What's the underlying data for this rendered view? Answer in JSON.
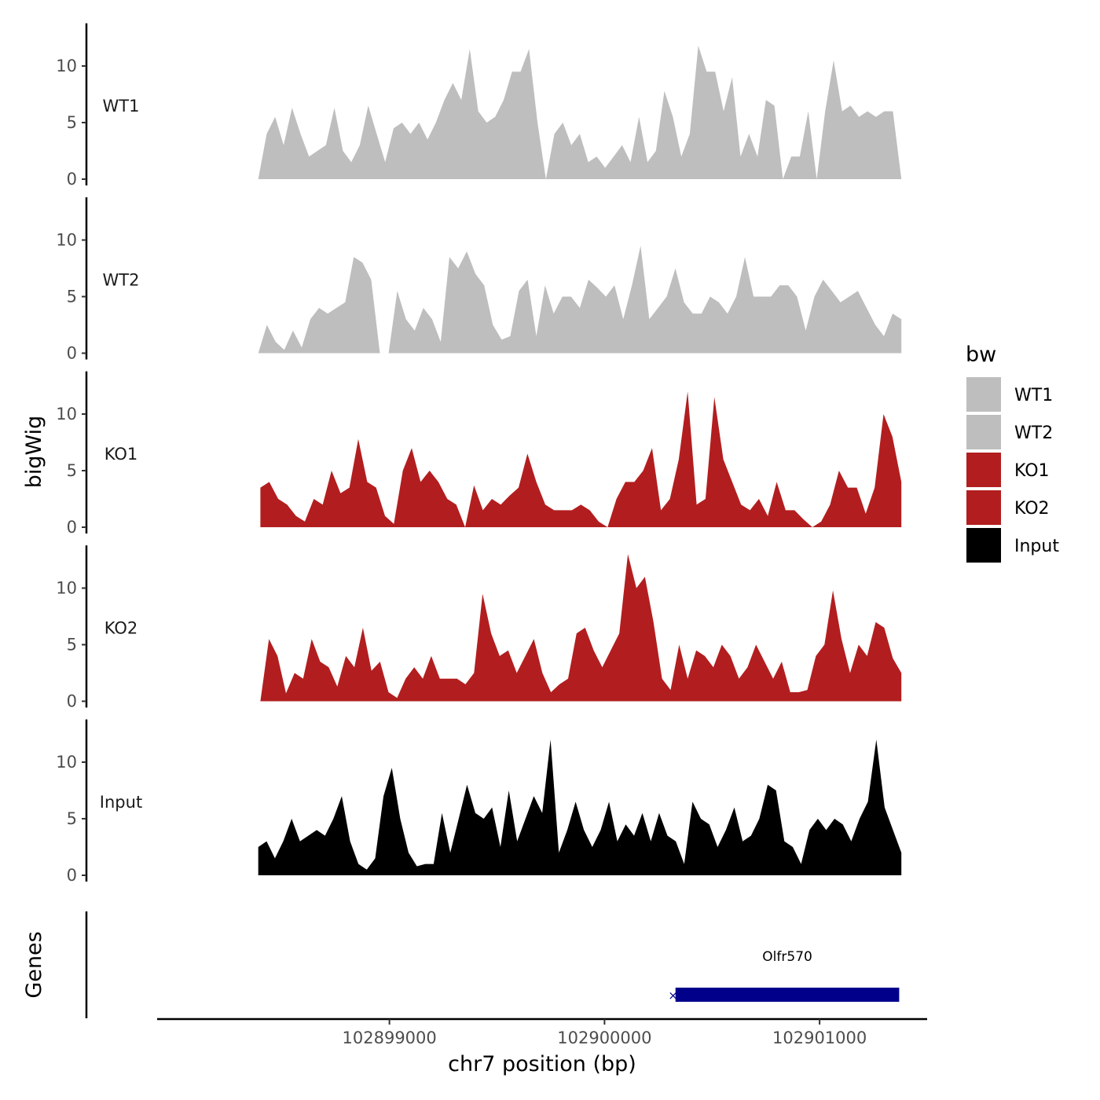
{
  "chart_data": {
    "type": "area",
    "chromosome": "chr7",
    "xlabel": "chr7 position (bp)",
    "ylabel": "bigWig",
    "genes_label": "Genes",
    "x_range": [
      102897920,
      102901500
    ],
    "x_ticks": [
      102899000,
      102900000,
      102901000
    ],
    "x_tick_labels": [
      "102899000",
      "102900000",
      "102901000"
    ],
    "y_range": [
      0,
      13.5
    ],
    "y_ticks": [
      0,
      5,
      10
    ],
    "y_tick_labels": [
      "0",
      "5",
      "10"
    ],
    "legend": {
      "title": "bw",
      "entries": [
        {
          "label": "WT1",
          "color": "#bebebe"
        },
        {
          "label": "WT2",
          "color": "#bebebe"
        },
        {
          "label": "KO1",
          "color": "#b21e1f"
        },
        {
          "label": "KO2",
          "color": "#b21e1f"
        },
        {
          "label": "Input",
          "color": "#000000"
        }
      ]
    },
    "series": [
      {
        "name": "WT1",
        "color": "#bebebe",
        "x_start": 102898390,
        "x_end": 102901380,
        "values": [
          0,
          4,
          5.5,
          3,
          6.3,
          4,
          2,
          2.5,
          3,
          6.3,
          2.5,
          1.5,
          3,
          6.5,
          4,
          1.5,
          4.5,
          5,
          4,
          5,
          3.5,
          5,
          7,
          8.5,
          7,
          11.5,
          6,
          5,
          5.5,
          7,
          9.5,
          9.5,
          11.5,
          5,
          0,
          4,
          5,
          3,
          4,
          1.5,
          2,
          1,
          2,
          3,
          1.5,
          5.5,
          1.5,
          2.5,
          7.8,
          5.5,
          2,
          4,
          11.8,
          9.5,
          9.5,
          6,
          9,
          2,
          4,
          2,
          7,
          6.5,
          0,
          2,
          2,
          6,
          0,
          6,
          10.5,
          6,
          6.5,
          5.5,
          6,
          5.5,
          6,
          6,
          0
        ]
      },
      {
        "name": "WT2",
        "color": "#bebebe",
        "x_start": 102898390,
        "x_end": 102901380,
        "values": [
          0,
          2.5,
          1,
          0.3,
          2,
          0.5,
          3,
          4,
          3.5,
          4,
          4.5,
          8.5,
          8,
          6.5,
          0,
          0,
          5.5,
          3,
          2,
          4,
          3,
          1,
          8.5,
          7.5,
          9,
          7,
          6,
          2.5,
          1.2,
          1.5,
          5.5,
          6.5,
          1.5,
          6,
          3.5,
          5,
          5,
          4,
          6.5,
          5.8,
          5,
          6,
          3,
          6,
          9.5,
          3,
          4,
          5,
          7.5,
          4.5,
          3.5,
          3.5,
          5,
          4.5,
          3.5,
          5,
          8.5,
          5,
          5,
          5,
          6,
          6,
          5,
          2,
          5,
          6.5,
          5.5,
          4.5,
          5,
          5.5,
          4,
          2.5,
          1.5,
          3.5,
          3
        ]
      },
      {
        "name": "KO1",
        "color": "#b21e1f",
        "x_start": 102898400,
        "x_end": 102901380,
        "values": [
          3.5,
          4,
          2.5,
          2,
          1,
          0.5,
          2.5,
          2,
          5,
          3,
          3.5,
          7.8,
          4,
          3.5,
          1,
          0.3,
          5,
          7,
          4,
          5,
          4,
          2.5,
          2,
          0,
          3.7,
          1.5,
          2.5,
          2,
          2.8,
          3.5,
          6.5,
          4,
          2,
          1.5,
          1.5,
          1.5,
          2,
          1.5,
          0.5,
          0,
          2.5,
          4,
          4,
          5,
          7,
          1.5,
          2.5,
          6,
          12,
          2,
          2.5,
          11.5,
          6,
          4,
          2,
          1.5,
          2.5,
          1,
          4,
          1.5,
          1.5,
          0.7,
          0,
          0.5,
          2,
          5,
          3.5,
          3.5,
          1.2,
          3.5,
          10,
          8,
          4
        ]
      },
      {
        "name": "KO2",
        "color": "#b21e1f",
        "x_start": 102898400,
        "x_end": 102901380,
        "values": [
          0,
          5.5,
          4,
          0.7,
          2.5,
          2,
          5.5,
          3.5,
          3,
          1.3,
          4,
          3,
          6.5,
          2.7,
          3.5,
          0.8,
          0.3,
          2,
          3,
          2,
          4,
          2,
          2,
          2,
          1.5,
          2.5,
          9.5,
          6,
          4,
          4.5,
          2.5,
          4,
          5.5,
          2.5,
          0.8,
          1.5,
          2,
          6,
          6.5,
          4.5,
          3,
          4.5,
          6,
          13,
          10,
          11,
          7,
          2,
          1,
          5,
          2,
          4.5,
          4,
          3,
          5,
          4,
          2,
          3,
          5,
          3.5,
          2,
          3.5,
          0.8,
          0.8,
          1,
          4,
          5,
          9.8,
          5.5,
          2.5,
          5,
          4,
          7,
          6.5,
          3.8,
          2.5
        ]
      },
      {
        "name": "Input",
        "color": "#000000",
        "x_start": 102898390,
        "x_end": 102901380,
        "values": [
          2.5,
          3,
          1.5,
          3,
          5,
          3,
          3.5,
          4,
          3.5,
          5,
          7,
          3,
          1,
          0.5,
          1.5,
          7,
          9.5,
          5,
          2,
          0.8,
          1,
          1,
          5.5,
          2,
          5,
          8,
          5.5,
          5,
          6,
          2.5,
          7.5,
          3,
          5,
          7,
          5.5,
          12,
          2,
          4,
          6.5,
          4,
          2.5,
          4,
          6.5,
          3,
          4.5,
          3.5,
          5.5,
          3,
          5.5,
          3.5,
          3,
          1,
          6.5,
          5,
          4.5,
          2.5,
          4,
          6,
          3,
          3.5,
          5,
          8,
          7.5,
          3,
          2.5,
          1,
          4,
          5,
          4,
          5,
          4.5,
          3,
          5,
          6.5,
          12,
          6,
          4,
          2
        ]
      }
    ],
    "genes": [
      {
        "name": "Olfr570",
        "start": 102900330,
        "end": 102901370,
        "strand": "+",
        "color": "#00008b"
      }
    ]
  }
}
